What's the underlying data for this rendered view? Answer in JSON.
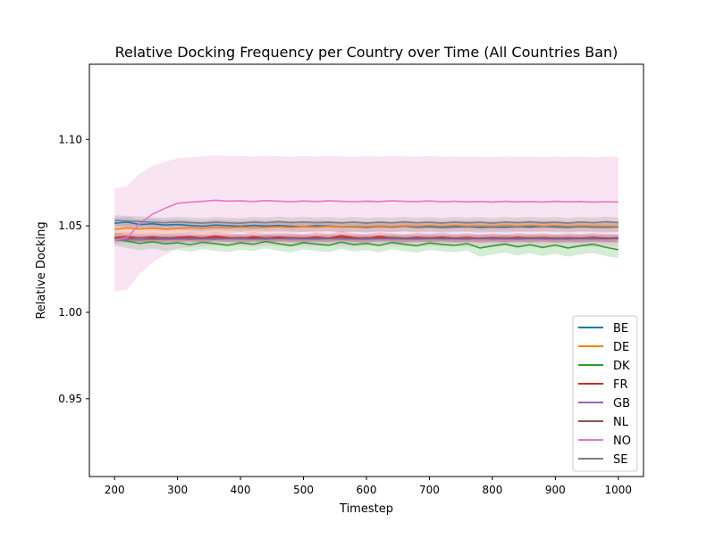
{
  "chart_data": {
    "type": "line",
    "title": "Relative Docking Frequency per Country over Time (All Countries Ban)",
    "xlabel": "Timestep",
    "ylabel": "Relative Docking",
    "xlim": [
      160,
      1040
    ],
    "ylim": [
      0.905,
      1.1435
    ],
    "xticks": [
      200,
      300,
      400,
      500,
      600,
      700,
      800,
      900,
      1000
    ],
    "xtick_labels": [
      "200",
      "300",
      "400",
      "500",
      "600",
      "700",
      "800",
      "900",
      "1000"
    ],
    "yticks": [
      0.95,
      1.0,
      1.05,
      1.1
    ],
    "ytick_labels": [
      "0.95",
      "1.00",
      "1.05",
      "1.10"
    ],
    "grid": false,
    "legend_position": "lower-right",
    "x": [
      200,
      220,
      240,
      260,
      280,
      300,
      320,
      340,
      360,
      380,
      400,
      420,
      440,
      460,
      480,
      500,
      520,
      540,
      560,
      580,
      600,
      620,
      640,
      660,
      680,
      700,
      720,
      740,
      760,
      780,
      800,
      820,
      840,
      860,
      880,
      900,
      920,
      940,
      960,
      980,
      1000
    ],
    "series": [
      {
        "name": "BE",
        "color": "#1f77b4",
        "values": [
          1.0515,
          1.0522,
          1.0508,
          1.0512,
          1.0505,
          1.0508,
          1.0502,
          1.0498,
          1.0505,
          1.0501,
          1.0498,
          1.0503,
          1.0499,
          1.0502,
          1.0498,
          1.0495,
          1.0501,
          1.0499,
          1.0494,
          1.0496,
          1.0491,
          1.0497,
          1.0493,
          1.0498,
          1.0492,
          1.0495,
          1.0491,
          1.0494,
          1.0496,
          1.0491,
          1.0494,
          1.0492,
          1.0496,
          1.0493,
          1.0497,
          1.0494,
          1.0492,
          1.0496,
          1.0493,
          1.0492,
          1.0494
        ],
        "band": [
          0.003,
          0.003,
          0.003,
          0.003,
          0.003,
          0.003,
          0.003,
          0.003,
          0.003,
          0.003,
          0.003,
          0.003,
          0.003,
          0.003,
          0.003,
          0.003,
          0.003,
          0.003,
          0.003,
          0.003,
          0.003,
          0.003,
          0.003,
          0.003,
          0.003,
          0.003,
          0.003,
          0.003,
          0.003,
          0.003,
          0.003,
          0.003,
          0.003,
          0.003,
          0.003,
          0.003,
          0.003,
          0.003,
          0.003,
          0.003,
          0.003
        ]
      },
      {
        "name": "DE",
        "color": "#ff7f0e",
        "values": [
          1.0478,
          1.0488,
          1.0482,
          1.0487,
          1.0481,
          1.0485,
          1.0489,
          1.0486,
          1.0491,
          1.0488,
          1.0493,
          1.0489,
          1.0492,
          1.0495,
          1.0491,
          1.0496,
          1.0493,
          1.0497,
          1.0494,
          1.0498,
          1.0495,
          1.0499,
          1.0496,
          1.0501,
          1.0497,
          1.0502,
          1.0498,
          1.0503,
          1.0499,
          1.0501,
          1.0498,
          1.0502,
          1.0499,
          1.0503,
          1.0499,
          1.0502,
          1.0498,
          1.0501,
          1.0499,
          1.0498,
          1.0497
        ],
        "band": [
          0.003,
          0.003,
          0.003,
          0.003,
          0.003,
          0.003,
          0.003,
          0.003,
          0.003,
          0.003,
          0.003,
          0.003,
          0.003,
          0.003,
          0.003,
          0.003,
          0.003,
          0.003,
          0.003,
          0.003,
          0.003,
          0.003,
          0.003,
          0.003,
          0.003,
          0.003,
          0.003,
          0.003,
          0.003,
          0.003,
          0.003,
          0.003,
          0.003,
          0.003,
          0.003,
          0.003,
          0.003,
          0.003,
          0.003,
          0.003,
          0.003
        ]
      },
      {
        "name": "DK",
        "color": "#2ca02c",
        "values": [
          1.0425,
          1.0412,
          1.0398,
          1.0408,
          1.0396,
          1.0402,
          1.0391,
          1.0405,
          1.0397,
          1.0388,
          1.0402,
          1.0394,
          1.0409,
          1.0397,
          1.0386,
          1.0403,
          1.0395,
          1.0388,
          1.0406,
          1.0392,
          1.0399,
          1.0387,
          1.0404,
          1.0394,
          1.0385,
          1.0401,
          1.0393,
          1.0387,
          1.0398,
          1.0372,
          1.0384,
          1.0395,
          1.0379,
          1.0391,
          1.0375,
          1.0389,
          1.0372,
          1.0385,
          1.0394,
          1.0376,
          1.0362
        ],
        "band": [
          0.004,
          0.004,
          0.004,
          0.004,
          0.004,
          0.004,
          0.004,
          0.004,
          0.004,
          0.004,
          0.004,
          0.004,
          0.004,
          0.004,
          0.004,
          0.004,
          0.004,
          0.004,
          0.004,
          0.004,
          0.004,
          0.004,
          0.004,
          0.004,
          0.004,
          0.004,
          0.004,
          0.004,
          0.004,
          0.005,
          0.005,
          0.005,
          0.005,
          0.005,
          0.005,
          0.005,
          0.005,
          0.005,
          0.005,
          0.005,
          0.005
        ]
      },
      {
        "name": "FR",
        "color": "#d62728",
        "values": [
          1.0432,
          1.0438,
          1.0429,
          1.0435,
          1.0427,
          1.0433,
          1.0438,
          1.0429,
          1.0441,
          1.0432,
          1.0426,
          1.0437,
          1.0429,
          1.0435,
          1.0431,
          1.0427,
          1.0436,
          1.0429,
          1.0443,
          1.0432,
          1.0427,
          1.0439,
          1.0431,
          1.0426,
          1.0434,
          1.0429,
          1.0435,
          1.0428,
          1.0433,
          1.0426,
          1.0431,
          1.0427,
          1.0434,
          1.0428,
          1.0432,
          1.0426,
          1.0431,
          1.0427,
          1.0433,
          1.0429,
          1.0428
        ],
        "band": [
          0.0025,
          0.0025,
          0.0025,
          0.0025,
          0.0025,
          0.0025,
          0.0025,
          0.0025,
          0.0025,
          0.0025,
          0.0025,
          0.0025,
          0.0025,
          0.0025,
          0.0025,
          0.0025,
          0.0025,
          0.0025,
          0.0025,
          0.0025,
          0.0025,
          0.0025,
          0.0025,
          0.0025,
          0.0025,
          0.0025,
          0.0025,
          0.0025,
          0.0025,
          0.0025,
          0.0025,
          0.0025,
          0.0025,
          0.0025,
          0.0025,
          0.0025,
          0.0025,
          0.0025,
          0.0025,
          0.0025,
          0.0025
        ]
      },
      {
        "name": "GB",
        "color": "#9467bd",
        "values": [
          1.0418,
          1.0421,
          1.0419,
          1.0423,
          1.0421,
          1.0424,
          1.0422,
          1.0425,
          1.0423,
          1.0426,
          1.0424,
          1.0425,
          1.0423,
          1.0426,
          1.0424,
          1.0425,
          1.0423,
          1.0426,
          1.0424,
          1.0425,
          1.0423,
          1.0426,
          1.0424,
          1.0425,
          1.0423,
          1.0426,
          1.0424,
          1.0425,
          1.0423,
          1.0426,
          1.0424,
          1.0425,
          1.0423,
          1.0426,
          1.0424,
          1.0425,
          1.0423,
          1.0426,
          1.0424,
          1.0425,
          1.0425
        ],
        "band": [
          0.002,
          0.002,
          0.002,
          0.002,
          0.002,
          0.002,
          0.002,
          0.002,
          0.002,
          0.002,
          0.002,
          0.002,
          0.002,
          0.002,
          0.002,
          0.002,
          0.002,
          0.002,
          0.002,
          0.002,
          0.002,
          0.002,
          0.002,
          0.002,
          0.002,
          0.002,
          0.002,
          0.002,
          0.002,
          0.002,
          0.002,
          0.002,
          0.002,
          0.002,
          0.002,
          0.002,
          0.002,
          0.002,
          0.002,
          0.002,
          0.002
        ]
      },
      {
        "name": "NL",
        "color": "#8c564b",
        "values": [
          1.0432,
          1.0427,
          1.0431,
          1.0428,
          1.0432,
          1.0429,
          1.0431,
          1.0428,
          1.0431,
          1.0429,
          1.0432,
          1.0428,
          1.0431,
          1.0429,
          1.0432,
          1.0428,
          1.0431,
          1.0429,
          1.0432,
          1.0428,
          1.0431,
          1.0429,
          1.0432,
          1.0428,
          1.0431,
          1.0429,
          1.0432,
          1.0428,
          1.0431,
          1.0429,
          1.0432,
          1.0428,
          1.0431,
          1.0429,
          1.0432,
          1.0428,
          1.0431,
          1.0429,
          1.0432,
          1.0428,
          1.0431
        ],
        "band": [
          0.002,
          0.002,
          0.002,
          0.002,
          0.002,
          0.002,
          0.002,
          0.002,
          0.002,
          0.002,
          0.002,
          0.002,
          0.002,
          0.002,
          0.002,
          0.002,
          0.002,
          0.002,
          0.002,
          0.002,
          0.002,
          0.002,
          0.002,
          0.002,
          0.002,
          0.002,
          0.002,
          0.002,
          0.002,
          0.002,
          0.002,
          0.002,
          0.002,
          0.002,
          0.002,
          0.002,
          0.002,
          0.002,
          0.002,
          0.002,
          0.002
        ]
      },
      {
        "name": "NO",
        "color": "#e377c2",
        "values": [
          1.0418,
          1.0432,
          1.0512,
          1.0568,
          1.0601,
          1.0631,
          1.0637,
          1.0642,
          1.0648,
          1.0643,
          1.0645,
          1.0641,
          1.0646,
          1.0643,
          1.064,
          1.0644,
          1.0641,
          1.0645,
          1.0642,
          1.064,
          1.0643,
          1.0641,
          1.0645,
          1.0642,
          1.0641,
          1.0644,
          1.064,
          1.0642,
          1.0639,
          1.0641,
          1.0638,
          1.0642,
          1.0639,
          1.0641,
          1.0638,
          1.0642,
          1.0639,
          1.0641,
          1.0637,
          1.064,
          1.0638
        ],
        "band": [
          0.03,
          0.03,
          0.029,
          0.028,
          0.027,
          0.026,
          0.026,
          0.026,
          0.026,
          0.026,
          0.026,
          0.026,
          0.026,
          0.026,
          0.026,
          0.026,
          0.026,
          0.026,
          0.026,
          0.026,
          0.026,
          0.026,
          0.026,
          0.026,
          0.026,
          0.026,
          0.026,
          0.026,
          0.026,
          0.026,
          0.026,
          0.026,
          0.026,
          0.026,
          0.026,
          0.026,
          0.026,
          0.026,
          0.026,
          0.026,
          0.026
        ]
      },
      {
        "name": "SE",
        "color": "#7f7f7f",
        "values": [
          1.0532,
          1.0528,
          1.0525,
          1.0521,
          1.0518,
          1.0523,
          1.0519,
          1.0516,
          1.0521,
          1.0518,
          1.0515,
          1.0522,
          1.0518,
          1.0524,
          1.0519,
          1.0523,
          1.0518,
          1.0521,
          1.0517,
          1.0522,
          1.0516,
          1.0521,
          1.0517,
          1.0523,
          1.0518,
          1.0521,
          1.0516,
          1.0522,
          1.0517,
          1.0521,
          1.0516,
          1.0522,
          1.0518,
          1.0523,
          1.0517,
          1.0521,
          1.0516,
          1.0522,
          1.0518,
          1.0524,
          1.0519
        ],
        "band": [
          0.003,
          0.003,
          0.003,
          0.003,
          0.003,
          0.003,
          0.003,
          0.003,
          0.003,
          0.003,
          0.003,
          0.003,
          0.003,
          0.003,
          0.003,
          0.003,
          0.003,
          0.003,
          0.003,
          0.003,
          0.003,
          0.003,
          0.003,
          0.003,
          0.003,
          0.003,
          0.003,
          0.003,
          0.003,
          0.003,
          0.003,
          0.003,
          0.003,
          0.003,
          0.003,
          0.003,
          0.003,
          0.003,
          0.003,
          0.003,
          0.003
        ]
      }
    ]
  }
}
